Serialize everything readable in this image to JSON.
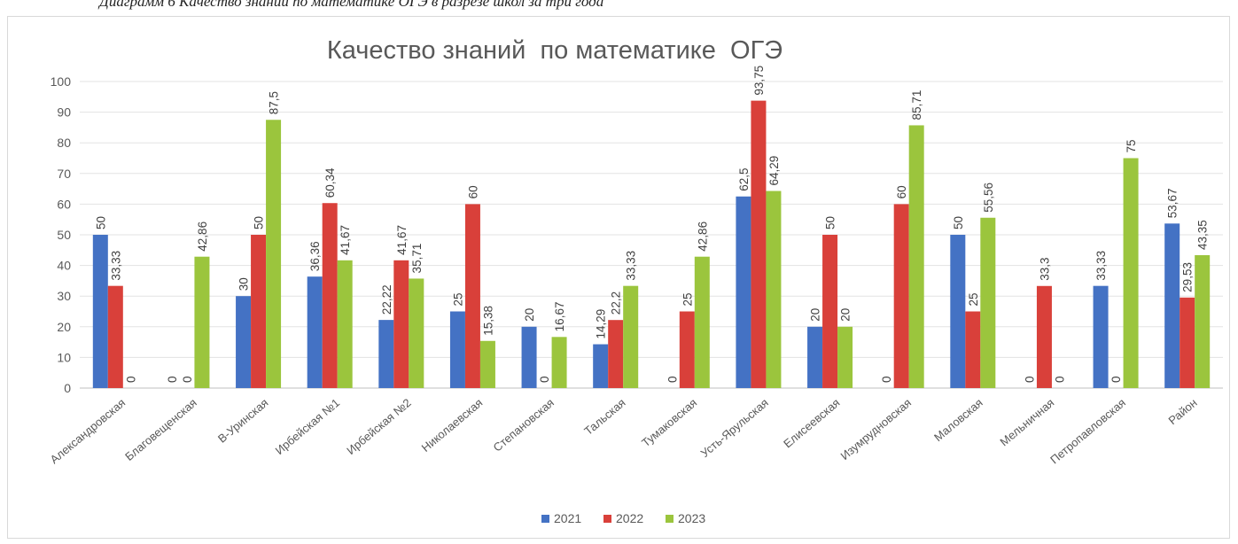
{
  "caption": "Диаграмм 6 Качество знаний по математике ОГЭ в разрезе школ за три года",
  "chart_data": {
    "type": "bar",
    "title": "Качество знаний  по математике  ОГЭ",
    "xlabel": "",
    "ylabel": "",
    "ylim": [
      0,
      100
    ],
    "yticks": [
      0,
      10,
      20,
      30,
      40,
      50,
      60,
      70,
      80,
      90,
      100
    ],
    "grid": true,
    "legend_position": "bottom",
    "categories": [
      "Александровская",
      "Благовещенская",
      "В-Уринская",
      "Ирбейская №1",
      "Ирбейская №2",
      "Николаевская",
      "Степановская",
      "Тальская",
      "Тумаковская",
      "Усть-Ярульская",
      "Елисеевская",
      "Изумрудновская",
      "Маловская",
      "Мельничная",
      "Петропавловская",
      "Район"
    ],
    "series": [
      {
        "name": "2021",
        "color": "#4472c4",
        "values": [
          50,
          0,
          30,
          36.36,
          22.22,
          25,
          20,
          14.29,
          0,
          62.5,
          20,
          0,
          50,
          0,
          33.33,
          53.67
        ],
        "labels": [
          "50",
          "0",
          "30",
          "36,36",
          "22,22",
          "25",
          "20",
          "14,29",
          "0",
          "62,5",
          "20",
          "0",
          "50",
          "0",
          "33,33",
          "53,67"
        ]
      },
      {
        "name": "2022",
        "color": "#d9403a",
        "values": [
          33.33,
          0,
          50,
          60.34,
          41.67,
          60,
          0,
          22.2,
          25,
          93.75,
          50,
          60,
          25,
          33.3,
          0,
          29.53
        ],
        "labels": [
          "33,33",
          "0",
          "50",
          "60,34",
          "41,67",
          "60",
          "0",
          "22,2",
          "25",
          "93,75",
          "50",
          "60",
          "25",
          "33,3",
          "0",
          "29,53"
        ]
      },
      {
        "name": "2023",
        "color": "#9bc53d",
        "values": [
          0,
          42.86,
          87.5,
          41.67,
          35.71,
          15.38,
          16.67,
          33.33,
          42.86,
          64.29,
          20,
          85.71,
          55.56,
          0,
          75,
          43.35
        ],
        "labels": [
          "0",
          "42,86",
          "87,5",
          "41,67",
          "35,71",
          "15,38",
          "16,67",
          "33,33",
          "42,86",
          "64,29",
          "20",
          "85,71",
          "55,56",
          "0",
          "75",
          "43,35"
        ]
      }
    ]
  }
}
